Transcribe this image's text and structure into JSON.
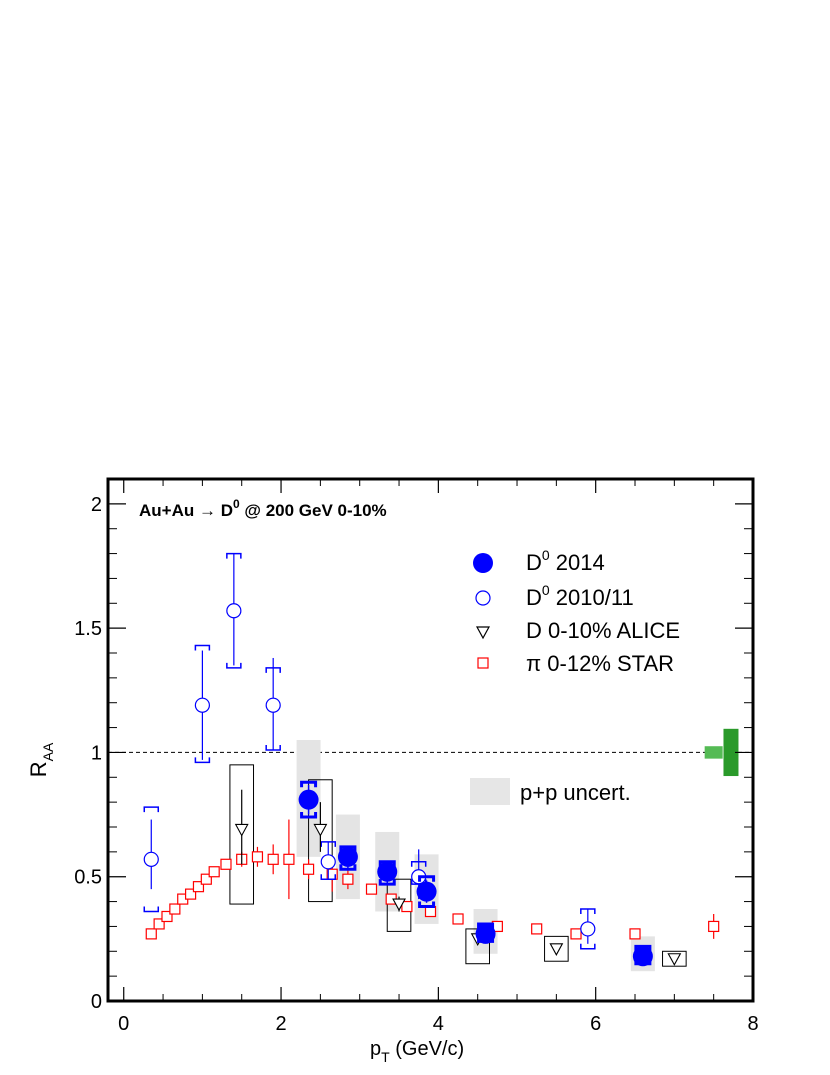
{
  "chart_data": {
    "type": "scatter",
    "title": "Au+Au → D",
    "title_sup": "0",
    "title_rest": " @ 200 GeV 0-10%",
    "xlabel_main": "p",
    "xlabel_sub": "T",
    "xlabel_rest": " (GeV/c)",
    "ylabel_main": "R",
    "ylabel_sub": "AA",
    "xlim": [
      -0.2,
      8.0
    ],
    "ylim": [
      0,
      2.1
    ],
    "x_ticks": [
      0,
      2,
      4,
      6,
      8
    ],
    "x_tick_labels": [
      "0",
      "2",
      "4",
      "6",
      "8"
    ],
    "y_ticks": [
      0,
      0.5,
      1,
      1.5,
      2
    ],
    "y_tick_labels": [
      "0",
      "0.5",
      "1",
      "1.5",
      "2"
    ],
    "reference_line": 1.0,
    "legend_position": "top-right",
    "legend": [
      {
        "label_main": "D",
        "label_sup": "0",
        "label_rest": " 2014",
        "marker": "filled-circle",
        "color": "#0000ff"
      },
      {
        "label_main": "D",
        "label_sup": "0",
        "label_rest": " 2010/11",
        "marker": "open-circle",
        "color": "#0000ff"
      },
      {
        "label_main": "D 0-10% ALICE",
        "label_sup": "",
        "label_rest": "",
        "marker": "open-triangle",
        "color": "#000000"
      },
      {
        "label_main": "π 0-12% STAR",
        "label_sup": "",
        "label_rest": "",
        "marker": "open-square",
        "color": "#ff0000"
      }
    ],
    "pp_uncert_label": "p+p uncert.",
    "norm_boxes": [
      {
        "x": 7.5,
        "lo": 0.975,
        "hi": 1.025,
        "color": "#55bb55"
      },
      {
        "x": 7.72,
        "lo": 0.905,
        "hi": 1.095,
        "color": "#2a9a2a"
      }
    ],
    "series": [
      {
        "name": "D0 2014",
        "marker": "filled-circle",
        "color": "#0000ff",
        "points": [
          {
            "x": 2.35,
            "y": 0.81,
            "stat": 0.06,
            "sys_lo": 0.74,
            "sys_hi": 0.88,
            "pp_lo": 0.58,
            "pp_hi": 1.05
          },
          {
            "x": 2.85,
            "y": 0.58,
            "stat": 0.045,
            "sys_lo": 0.53,
            "sys_hi": 0.62,
            "pp_lo": 0.41,
            "pp_hi": 0.75
          },
          {
            "x": 3.35,
            "y": 0.52,
            "stat": 0.045,
            "sys_lo": 0.47,
            "sys_hi": 0.56,
            "pp_lo": 0.36,
            "pp_hi": 0.68
          },
          {
            "x": 3.85,
            "y": 0.44,
            "stat": 0.045,
            "sys_lo": 0.38,
            "sys_hi": 0.5,
            "pp_lo": 0.31,
            "pp_hi": 0.59
          },
          {
            "x": 4.6,
            "y": 0.27,
            "stat": 0.03,
            "sys_lo": 0.24,
            "sys_hi": 0.31,
            "pp_lo": 0.19,
            "pp_hi": 0.37
          },
          {
            "x": 6.6,
            "y": 0.18,
            "stat": 0.03,
            "sys_lo": 0.15,
            "sys_hi": 0.22,
            "pp_lo": 0.12,
            "pp_hi": 0.26
          }
        ]
      },
      {
        "name": "D0 2010/11",
        "marker": "open-circle",
        "color": "#0000ff",
        "points": [
          {
            "x": 0.35,
            "y": 0.57,
            "stat_lo": 0.45,
            "stat_hi": 0.73,
            "sys_lo": 0.36,
            "sys_hi": 0.78
          },
          {
            "x": 1.0,
            "y": 1.19,
            "stat_lo": 0.97,
            "stat_hi": 1.41,
            "sys_lo": 0.96,
            "sys_hi": 1.43
          },
          {
            "x": 1.4,
            "y": 1.57,
            "stat_lo": 1.35,
            "stat_hi": 1.8,
            "sys_lo": 1.34,
            "sys_hi": 1.8
          },
          {
            "x": 1.9,
            "y": 1.19,
            "stat_lo": 1.01,
            "stat_hi": 1.38,
            "sys_lo": 1.01,
            "sys_hi": 1.34
          },
          {
            "x": 2.6,
            "y": 0.56,
            "stat_lo": 0.49,
            "stat_hi": 0.64,
            "sys_lo": 0.49,
            "sys_hi": 0.64
          },
          {
            "x": 3.75,
            "y": 0.5,
            "stat_lo": 0.41,
            "stat_hi": 0.61,
            "sys_lo": 0.47,
            "sys_hi": 0.56
          },
          {
            "x": 5.9,
            "y": 0.29,
            "stat_lo": 0.23,
            "stat_hi": 0.37,
            "sys_lo": 0.21,
            "sys_hi": 0.37
          }
        ]
      },
      {
        "name": "D 0-10% ALICE",
        "marker": "open-triangle",
        "color": "#000000",
        "points": [
          {
            "x": 1.5,
            "y": 0.69,
            "stat_lo": 0.55,
            "stat_hi": 0.85,
            "sys_lo": 0.39,
            "sys_hi": 0.95,
            "sys_hw": 0.15
          },
          {
            "x": 2.5,
            "y": 0.69,
            "stat_lo": 0.6,
            "stat_hi": 0.8,
            "sys_lo": 0.4,
            "sys_hi": 0.89,
            "sys_hw": 0.15
          },
          {
            "x": 3.5,
            "y": 0.39,
            "stat_lo": 0.36,
            "stat_hi": 0.42,
            "sys_lo": 0.28,
            "sys_hi": 0.49,
            "sys_hw": 0.15
          },
          {
            "x": 4.5,
            "y": 0.25,
            "stat_lo": 0.23,
            "stat_hi": 0.27,
            "sys_lo": 0.15,
            "sys_hi": 0.29,
            "sys_hw": 0.15
          },
          {
            "x": 5.5,
            "y": 0.21,
            "stat_lo": 0.2,
            "stat_hi": 0.22,
            "sys_lo": 0.16,
            "sys_hi": 0.26,
            "sys_hw": 0.15
          },
          {
            "x": 7.0,
            "y": 0.17,
            "stat_lo": 0.16,
            "stat_hi": 0.18,
            "sys_lo": 0.14,
            "sys_hi": 0.2,
            "sys_hw": 0.15
          }
        ]
      },
      {
        "name": "pi 0-12% STAR",
        "marker": "open-square",
        "color": "#ff0000",
        "points": [
          {
            "x": 0.35,
            "y": 0.27,
            "stat_lo": 0.27,
            "stat_hi": 0.27
          },
          {
            "x": 0.45,
            "y": 0.31,
            "stat_lo": 0.31,
            "stat_hi": 0.31
          },
          {
            "x": 0.55,
            "y": 0.34,
            "stat_lo": 0.34,
            "stat_hi": 0.34
          },
          {
            "x": 0.65,
            "y": 0.37,
            "stat_lo": 0.37,
            "stat_hi": 0.37
          },
          {
            "x": 0.75,
            "y": 0.41,
            "stat_lo": 0.41,
            "stat_hi": 0.41
          },
          {
            "x": 0.85,
            "y": 0.43,
            "stat_lo": 0.43,
            "stat_hi": 0.43
          },
          {
            "x": 0.95,
            "y": 0.46,
            "stat_lo": 0.46,
            "stat_hi": 0.46
          },
          {
            "x": 1.05,
            "y": 0.49,
            "stat_lo": 0.48,
            "stat_hi": 0.5
          },
          {
            "x": 1.15,
            "y": 0.52,
            "stat_lo": 0.51,
            "stat_hi": 0.53
          },
          {
            "x": 1.3,
            "y": 0.55,
            "stat_lo": 0.53,
            "stat_hi": 0.57
          },
          {
            "x": 1.5,
            "y": 0.57,
            "stat_lo": 0.54,
            "stat_hi": 0.6
          },
          {
            "x": 1.7,
            "y": 0.58,
            "stat_lo": 0.54,
            "stat_hi": 0.62
          },
          {
            "x": 1.9,
            "y": 0.57,
            "stat_lo": 0.51,
            "stat_hi": 0.63
          },
          {
            "x": 2.1,
            "y": 0.57,
            "stat_lo": 0.41,
            "stat_hi": 0.73
          },
          {
            "x": 2.35,
            "y": 0.53,
            "stat_lo": 0.49,
            "stat_hi": 0.57
          },
          {
            "x": 2.65,
            "y": 0.51,
            "stat_lo": 0.44,
            "stat_hi": 0.58
          },
          {
            "x": 2.85,
            "y": 0.49,
            "stat_lo": 0.45,
            "stat_hi": 0.53
          },
          {
            "x": 3.15,
            "y": 0.45,
            "stat_lo": 0.44,
            "stat_hi": 0.46
          },
          {
            "x": 3.4,
            "y": 0.41,
            "stat_lo": 0.4,
            "stat_hi": 0.42
          },
          {
            "x": 3.6,
            "y": 0.38,
            "stat_lo": 0.37,
            "stat_hi": 0.39
          },
          {
            "x": 3.9,
            "y": 0.36,
            "stat_lo": 0.34,
            "stat_hi": 0.38
          },
          {
            "x": 4.25,
            "y": 0.33,
            "stat_lo": 0.32,
            "stat_hi": 0.34
          },
          {
            "x": 4.75,
            "y": 0.3,
            "stat_lo": 0.29,
            "stat_hi": 0.31
          },
          {
            "x": 5.25,
            "y": 0.29,
            "stat_lo": 0.28,
            "stat_hi": 0.3
          },
          {
            "x": 5.75,
            "y": 0.27,
            "stat_lo": 0.26,
            "stat_hi": 0.28
          },
          {
            "x": 6.5,
            "y": 0.27,
            "stat_lo": 0.26,
            "stat_hi": 0.28
          },
          {
            "x": 7.5,
            "y": 0.3,
            "stat_lo": 0.25,
            "stat_hi": 0.35
          }
        ]
      }
    ]
  }
}
